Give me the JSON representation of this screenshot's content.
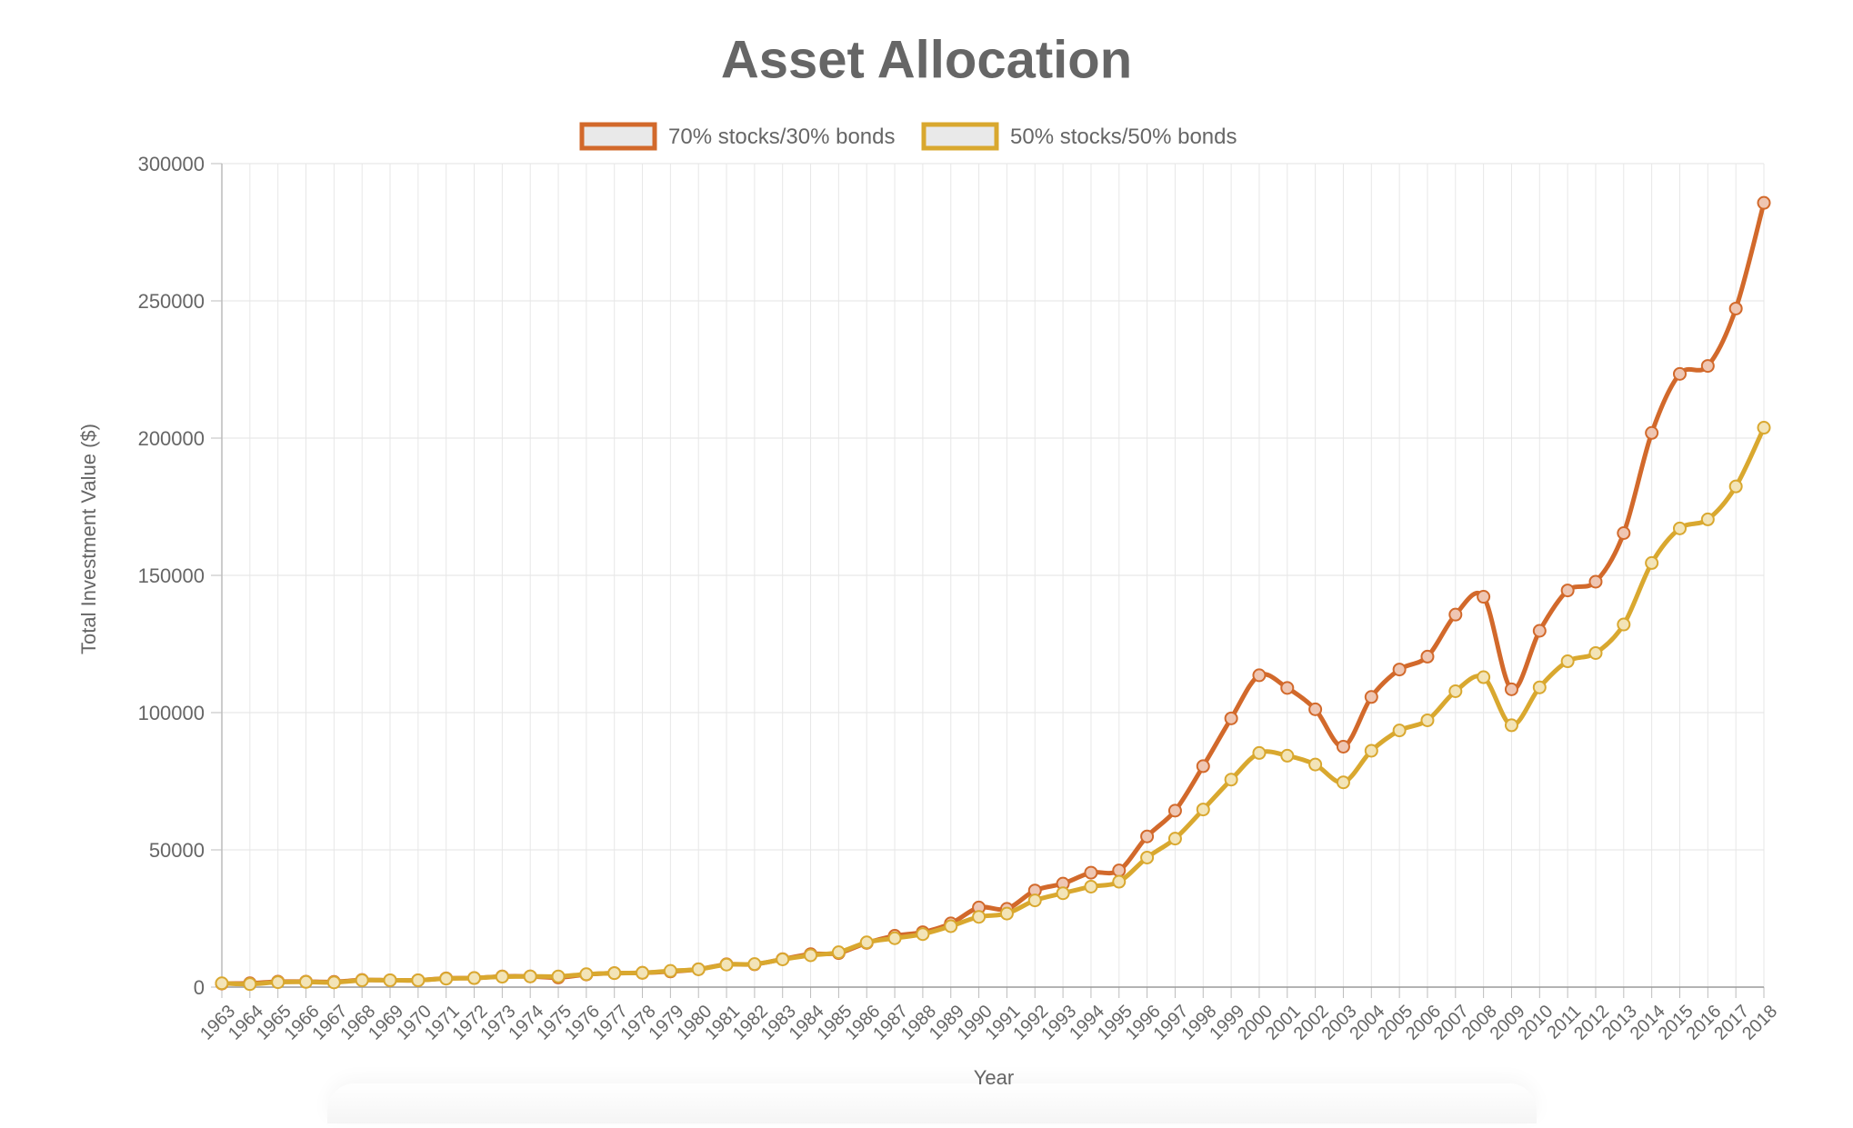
{
  "chart_data": {
    "type": "line",
    "title": "Asset Allocation",
    "xlabel": "Year",
    "ylabel": "Total Investment Value ($)",
    "ylim": [
      0,
      300000
    ],
    "y_ticks": [
      0,
      50000,
      100000,
      150000,
      200000,
      250000,
      300000
    ],
    "grid": true,
    "legend_position": "top-center",
    "categories": [
      "1963",
      "1964",
      "1965",
      "1966",
      "1967",
      "1968",
      "1969",
      "1970",
      "1971",
      "1972",
      "1973",
      "1974",
      "1975",
      "1976",
      "1977",
      "1978",
      "1979",
      "1980",
      "1981",
      "1982",
      "1983",
      "1984",
      "1985",
      "1986",
      "1987",
      "1988",
      "1989",
      "1990",
      "1991",
      "1992",
      "1993",
      "1994",
      "1995",
      "1996",
      "1997",
      "1998",
      "1999",
      "2000",
      "2001",
      "2002",
      "2003",
      "2004",
      "2005",
      "2006",
      "2007",
      "2008",
      "2009",
      "2010",
      "2011",
      "2012",
      "2013",
      "2014",
      "2015",
      "2016",
      "2017",
      "2018"
    ],
    "series": [
      {
        "name": "70% stocks/30% bonds",
        "color": "#d2692b",
        "values": [
          1300,
          1400,
          2000,
          2000,
          1900,
          2600,
          2500,
          2500,
          3200,
          3300,
          3900,
          3900,
          3500,
          4600,
          5100,
          5200,
          5700,
          6500,
          8300,
          8300,
          10200,
          12000,
          12400,
          16100,
          18700,
          20000,
          23200,
          29000,
          28500,
          35200,
          37700,
          41700,
          42500,
          54900,
          64300,
          80500,
          97900,
          113600,
          109000,
          101200,
          87600,
          105700,
          115700,
          120400,
          135700,
          142200,
          108500,
          129800,
          144500,
          147700,
          165400,
          201900,
          223400,
          226300,
          247200,
          285700
        ]
      },
      {
        "name": "50% stocks/50% bonds",
        "color": "#d9a82f",
        "values": [
          1400,
          1100,
          1800,
          1900,
          1700,
          2500,
          2500,
          2500,
          3100,
          3300,
          3800,
          3900,
          3900,
          4700,
          5100,
          5200,
          5900,
          6500,
          8200,
          8400,
          10100,
          11600,
          12700,
          16300,
          17800,
          19300,
          22200,
          25600,
          26800,
          31600,
          34200,
          36600,
          38400,
          47200,
          54100,
          64700,
          75600,
          85300,
          84300,
          81100,
          74600,
          86100,
          93500,
          97200,
          107800,
          112900,
          95400,
          109200,
          118700,
          121700,
          132100,
          154500,
          167100,
          170400,
          182400,
          203800
        ]
      }
    ]
  }
}
